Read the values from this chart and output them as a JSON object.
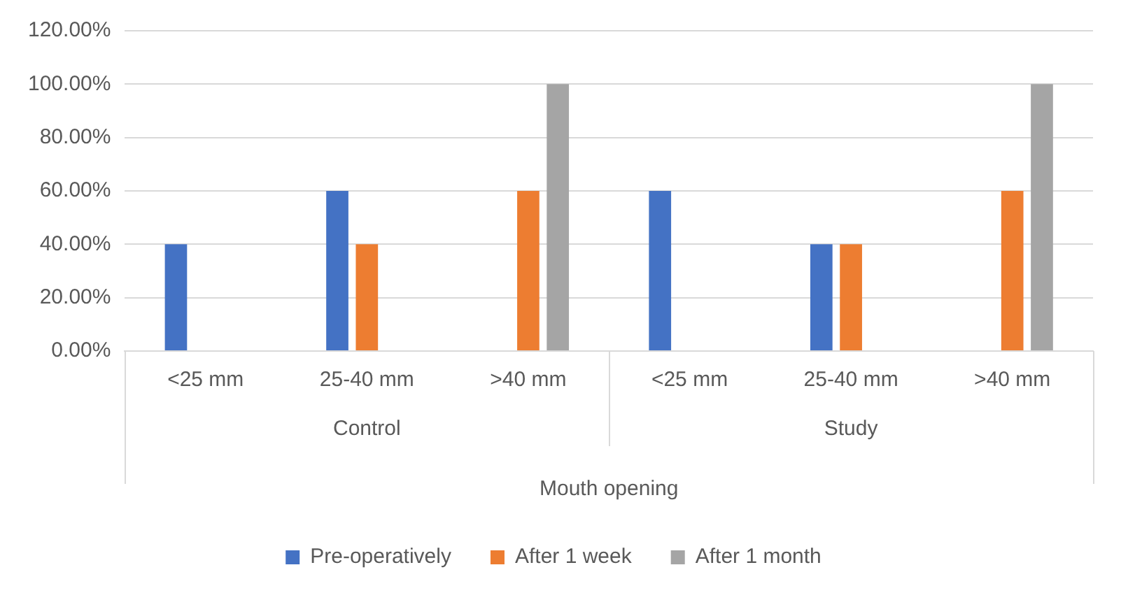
{
  "chart_data": {
    "type": "bar",
    "categories": [
      "<25 mm",
      "25-40 mm",
      ">40 mm",
      "<25 mm",
      "25-40 mm",
      ">40 mm"
    ],
    "xlabel": "Mouth opening",
    "annotations": [
      "Control",
      "Study"
    ],
    "series": [
      {
        "name": "Pre-operatively",
        "color": "#4472c4",
        "values": [
          40,
          60,
          0,
          60,
          40,
          0
        ]
      },
      {
        "name": "After 1 week",
        "color": "#ed7d31",
        "values": [
          0,
          40,
          60,
          0,
          40,
          60
        ]
      },
      {
        "name": "After 1 month",
        "color": "#a5a5a5",
        "values": [
          0,
          0,
          100,
          0,
          0,
          100
        ]
      }
    ],
    "ylim": [
      0,
      120
    ],
    "yticks": [
      {
        "value": 0,
        "label": "0.00%"
      },
      {
        "value": 20,
        "label": "20.00%"
      },
      {
        "value": 40,
        "label": "40.00%"
      },
      {
        "value": 60,
        "label": "60.00%"
      },
      {
        "value": 80,
        "label": "80.00%"
      },
      {
        "value": 100,
        "label": "100.00%"
      },
      {
        "value": 120,
        "label": "120.00%"
      }
    ],
    "grid": "y",
    "legend": "bottom"
  }
}
